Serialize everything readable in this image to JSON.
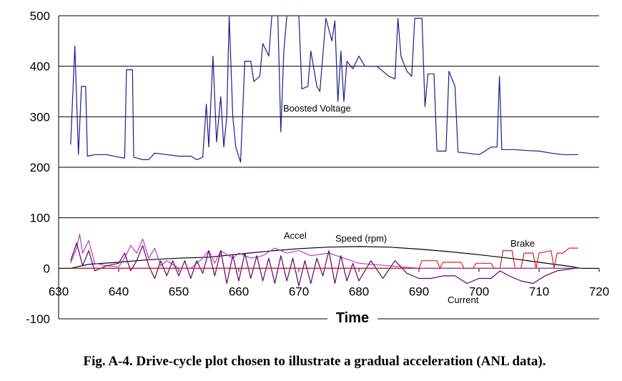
{
  "chart_data": {
    "type": "line",
    "x_label": "Time",
    "caption": "Fig. A-4. Drive-cycle plot chosen to illustrate a gradual acceleration (ANL data).",
    "xlim": [
      630,
      720
    ],
    "xticks": [
      630,
      640,
      650,
      660,
      670,
      680,
      690,
      700,
      710,
      720
    ],
    "ylim": [
      -100,
      500
    ],
    "yticks": [
      -100,
      0,
      100,
      200,
      300,
      400,
      500
    ],
    "grid": true,
    "annotations": [
      "Boosted Voltage",
      "Accel",
      "Speed (rpm)",
      "Brake",
      "Current"
    ],
    "series": [
      {
        "name": "Boosted Voltage",
        "color": "#1c1c8a",
        "x": [
          632,
          632.7,
          633.3,
          633.8,
          634.5,
          634.8,
          636,
          638,
          640,
          641,
          641.3,
          642.3,
          642.5,
          644,
          645,
          646,
          648,
          650,
          652,
          653,
          654,
          654.6,
          655,
          655.7,
          656.3,
          657,
          657.5,
          658,
          658.4,
          659,
          659.5,
          660.3,
          661,
          662,
          662.5,
          663.5,
          664,
          665,
          665.5,
          666.5,
          667,
          667.5,
          668,
          670,
          670.5,
          671.5,
          672,
          673,
          673.5,
          674.5,
          675.5,
          676,
          676.5,
          677,
          677.5,
          678,
          679,
          680,
          681,
          683,
          685,
          686,
          686.5,
          687,
          688,
          688.8,
          689.3,
          690.5,
          691,
          691.5,
          692.5,
          693,
          694.5,
          695,
          696,
          696.5,
          698,
          700,
          701,
          702,
          703,
          703.4,
          703.8,
          706,
          708,
          710,
          712,
          714,
          716.5
        ],
        "values": [
          245,
          440,
          225,
          360,
          360,
          222,
          225,
          225,
          220,
          218,
          393,
          393,
          220,
          215,
          215,
          228,
          225,
          222,
          222,
          215,
          220,
          325,
          240,
          420,
          250,
          340,
          240,
          300,
          500,
          300,
          240,
          210,
          410,
          410,
          370,
          380,
          445,
          420,
          500,
          500,
          270,
          430,
          500,
          500,
          355,
          360,
          430,
          360,
          350,
          495,
          450,
          490,
          330,
          430,
          330,
          410,
          395,
          420,
          400,
          400,
          380,
          375,
          495,
          420,
          390,
          380,
          495,
          495,
          320,
          385,
          385,
          232,
          232,
          390,
          360,
          230,
          228,
          225,
          232,
          240,
          240,
          380,
          235,
          235,
          233,
          232,
          228,
          225,
          225
        ]
      },
      {
        "name": "Speed (rpm)",
        "color": "#000000",
        "x": [
          632,
          635,
          640,
          645,
          650,
          655,
          660,
          665,
          670,
          675,
          680,
          685,
          690,
          695,
          700,
          705,
          710,
          715,
          717
        ],
        "values": [
          0,
          8,
          12,
          17,
          20,
          22,
          28,
          34,
          39,
          42,
          43,
          42,
          38,
          33,
          27,
          20,
          12,
          4,
          0
        ]
      },
      {
        "name": "Accel",
        "color": "#b040c0",
        "x": [
          632,
          633,
          633.5,
          634,
          635,
          636,
          638,
          640,
          641,
          642,
          643,
          644,
          645,
          646,
          647,
          648,
          650,
          652,
          654,
          655,
          656,
          657,
          659,
          660,
          662,
          664,
          666,
          668,
          670,
          672,
          675,
          680,
          685,
          690,
          700,
          717
        ],
        "values": [
          10,
          40,
          68,
          30,
          55,
          10,
          5,
          3,
          20,
          45,
          30,
          58,
          20,
          40,
          5,
          15,
          0,
          0,
          20,
          35,
          10,
          35,
          20,
          30,
          20,
          25,
          40,
          30,
          35,
          25,
          30,
          10,
          5,
          0,
          0,
          0
        ]
      },
      {
        "name": "Current",
        "color": "#600070",
        "x": [
          632,
          633,
          634,
          635,
          636,
          638,
          640,
          641,
          642,
          643,
          644,
          645,
          646,
          647,
          648,
          649,
          650,
          651,
          652,
          653,
          654,
          655,
          656,
          657,
          658,
          659,
          660,
          661,
          662,
          663,
          664,
          665,
          666,
          667,
          668,
          669,
          670,
          671,
          672,
          673,
          674,
          675,
          676,
          677,
          678,
          679,
          680,
          682,
          684,
          686,
          688,
          690,
          692,
          694,
          696,
          698,
          700,
          702,
          703.5,
          705,
          707,
          709,
          711,
          713,
          716
        ],
        "values": [
          15,
          50,
          5,
          35,
          -5,
          5,
          10,
          30,
          -5,
          15,
          45,
          5,
          -20,
          15,
          -15,
          15,
          -15,
          15,
          -20,
          15,
          -10,
          35,
          -15,
          35,
          -30,
          25,
          -25,
          30,
          -20,
          25,
          -25,
          20,
          -30,
          25,
          -25,
          20,
          -35,
          15,
          -30,
          20,
          -15,
          35,
          -30,
          25,
          -25,
          10,
          -25,
          15,
          -20,
          15,
          -10,
          -20,
          -20,
          -15,
          -15,
          -30,
          -20,
          -20,
          -5,
          -15,
          -25,
          -30,
          -15,
          -5,
          0
        ]
      },
      {
        "name": "Brake",
        "color": "#e02020",
        "x": [
          632,
          690,
          690.5,
          693,
          693.5,
          694,
          697,
          697.5,
          699,
          699.5,
          702,
          702.5,
          703.5,
          704,
          705.5,
          706,
          707,
          707.5,
          709,
          709.5,
          710,
          712,
          712.5,
          713,
          714,
          714.5,
          715,
          716.5
        ],
        "values": [
          0,
          0,
          15,
          15,
          0,
          12,
          12,
          0,
          0,
          10,
          10,
          0,
          0,
          35,
          35,
          0,
          0,
          30,
          30,
          0,
          30,
          35,
          0,
          30,
          30,
          35,
          40,
          40
        ]
      }
    ]
  }
}
